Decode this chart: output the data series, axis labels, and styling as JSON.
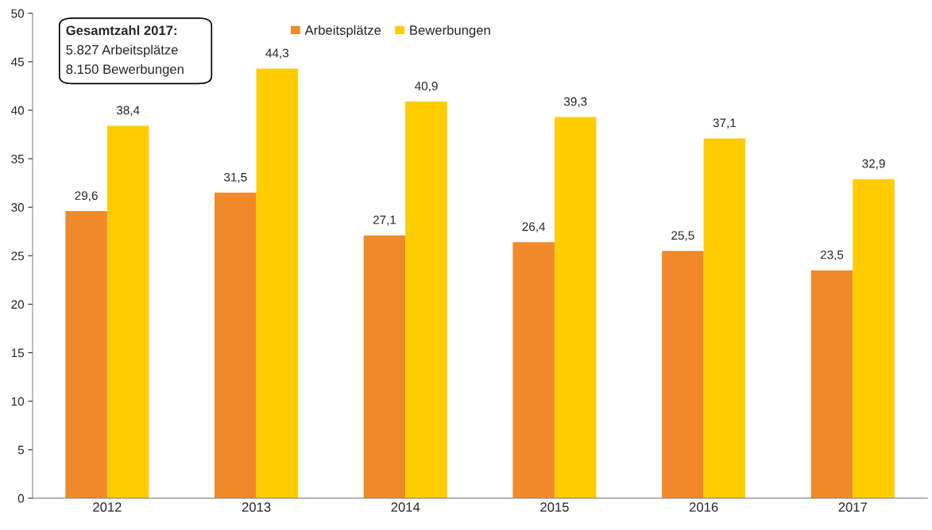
{
  "chart_data": {
    "type": "bar",
    "categories": [
      "2012",
      "2013",
      "2014",
      "2015",
      "2016",
      "2017"
    ],
    "series": [
      {
        "name": "Arbeitsplätze",
        "color": "#f08a2a",
        "values": [
          29.6,
          31.5,
          27.1,
          26.4,
          25.5,
          23.5
        ],
        "value_labels": [
          "29,6",
          "31,5",
          "27,1",
          "26,4",
          "25,5",
          "23,5"
        ]
      },
      {
        "name": "Bewerbungen",
        "color": "#ffcc00",
        "values": [
          38.4,
          44.3,
          40.9,
          39.3,
          37.1,
          32.9
        ],
        "value_labels": [
          "38,4",
          "44,3",
          "40,9",
          "39,3",
          "37,1",
          "32,9"
        ]
      }
    ],
    "ylim": [
      0,
      50
    ],
    "yticks": [
      0,
      5,
      10,
      15,
      20,
      25,
      30,
      35,
      40,
      45,
      50
    ],
    "grid": false,
    "legend": "top",
    "annotations": [
      "Gesamtzahl 2017:",
      "5.827 Arbeitsplätze",
      "8.150 Bewerbungen"
    ]
  }
}
